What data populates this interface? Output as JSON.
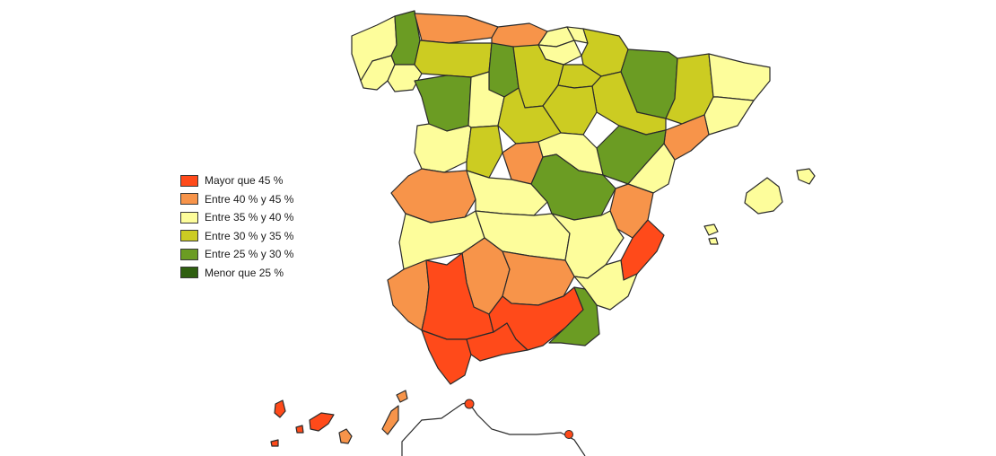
{
  "colors": {
    "mayor_45": "#ff4a1a",
    "40_45": "#f7944a",
    "35_40": "#fdfd9b",
    "30_35": "#cccc22",
    "25_30": "#6b9c23",
    "menor_25": "#2f5f10",
    "outline": "#2b2b2b"
  },
  "legend": [
    {
      "label": "Mayor que 45  %",
      "color_key": "mayor_45"
    },
    {
      "label": "Entre 40 % y 45  %",
      "color_key": "40_45"
    },
    {
      "label": "Entre 35 % y 40  %",
      "color_key": "35_40"
    },
    {
      "label": "Entre 30 % y 35  %",
      "color_key": "30_35"
    },
    {
      "label": "Entre 25 % y 30  %",
      "color_key": "25_30"
    },
    {
      "label": "Menor que 25  %",
      "color_key": "menor_25"
    }
  ]
}
